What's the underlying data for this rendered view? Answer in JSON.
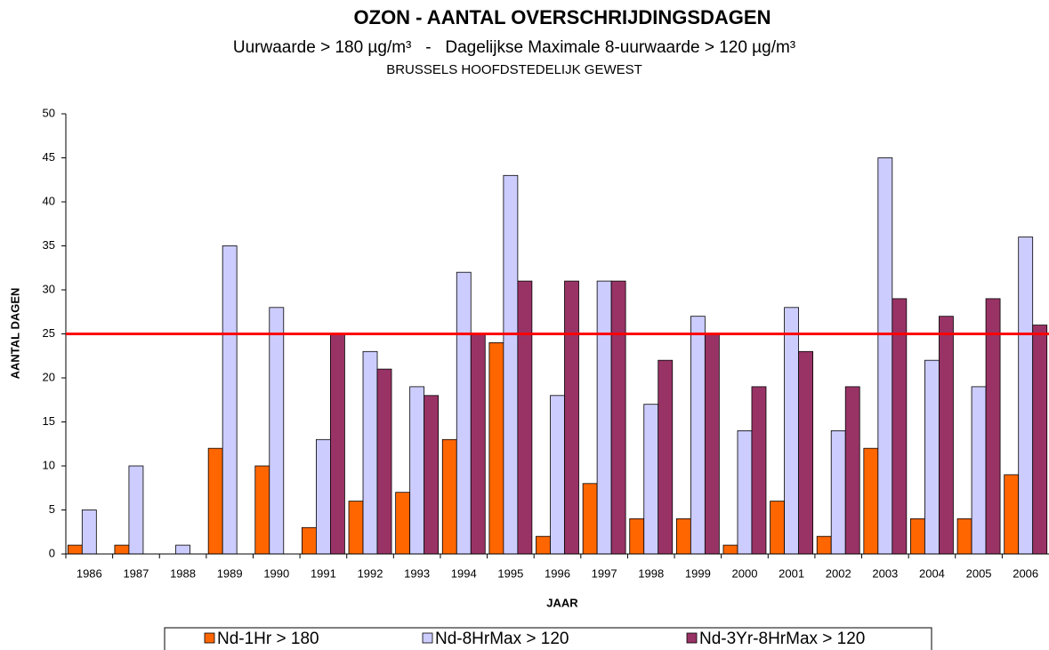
{
  "chart_data": {
    "type": "bar",
    "title": "OZON - AANTAL OVERSCHRIJDINGSDAGEN",
    "subtitle": "Uurwaarde > 180 µg/m³   -   Dagelijkse Maximale 8-uurwaarde > 120 µg/m³",
    "region": "BRUSSELS HOOFDSTEDELIJK GEWEST",
    "x_label": "JAAR",
    "y_label": "AANTAL DAGEN",
    "categories": [
      "1986",
      "1987",
      "1988",
      "1989",
      "1990",
      "1991",
      "1992",
      "1993",
      "1994",
      "1995",
      "1996",
      "1997",
      "1998",
      "1999",
      "2000",
      "2001",
      "2002",
      "2003",
      "2004",
      "2005",
      "2006"
    ],
    "series": [
      {
        "name": "Nd-1Hr > 180",
        "color": "#ff6600",
        "values": [
          1,
          1,
          0,
          12,
          10,
          3,
          6,
          7,
          13,
          24,
          2,
          8,
          4,
          4,
          1,
          6,
          2,
          12,
          4,
          4,
          9
        ]
      },
      {
        "name": "Nd-8HrMax > 120",
        "color": "#ccccff",
        "values": [
          5,
          10,
          1,
          35,
          28,
          13,
          23,
          19,
          32,
          43,
          18,
          31,
          17,
          27,
          14,
          28,
          14,
          45,
          22,
          19,
          36
        ]
      },
      {
        "name": "Nd-3Yr-8HrMax > 120",
        "color": "#993366",
        "values": [
          null,
          null,
          null,
          null,
          null,
          25,
          21,
          18,
          25,
          31,
          31,
          31,
          22,
          25,
          19,
          23,
          19,
          29,
          27,
          29,
          26
        ]
      }
    ],
    "reference_line": {
      "value": 25,
      "color": "#ff0000"
    },
    "ylim": [
      0,
      50
    ],
    "yticks": [
      0,
      5,
      10,
      15,
      20,
      25,
      30,
      35,
      40,
      45,
      50
    ],
    "grid": false,
    "legend": "bottom"
  }
}
